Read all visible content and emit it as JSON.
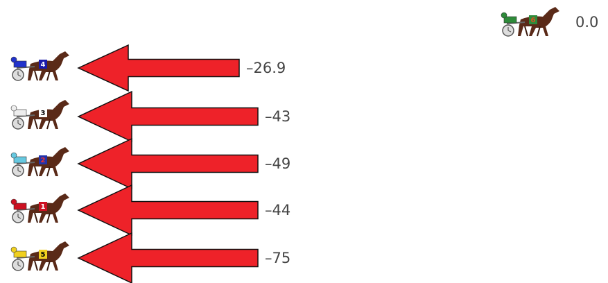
{
  "top": {
    "horse": "6",
    "value": "0.0"
  },
  "rows": [
    {
      "horse": "4",
      "value": "–26.9"
    },
    {
      "horse": "3",
      "value": "–43"
    },
    {
      "horse": "2",
      "value": "–49"
    },
    {
      "horse": "1",
      "value": "–44"
    },
    {
      "horse": "5",
      "value": "–75"
    }
  ]
}
